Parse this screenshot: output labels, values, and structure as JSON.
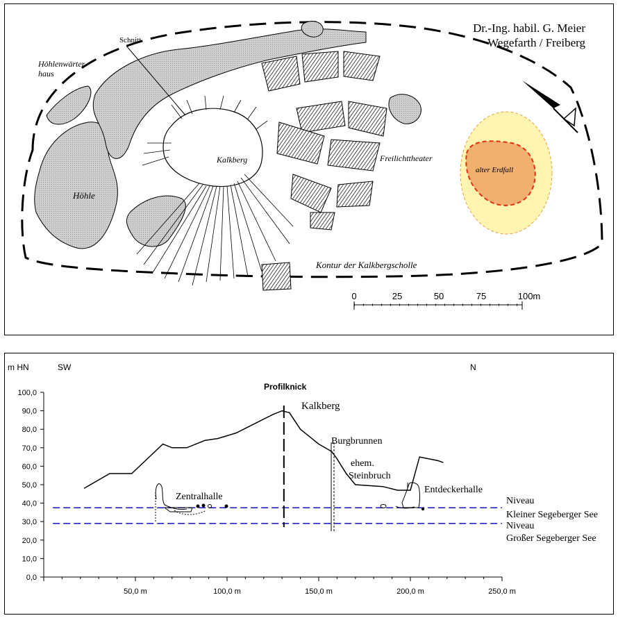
{
  "map": {
    "credit_line1": "Dr.-Ing. habil. G. Meier",
    "credit_line2": "Wegefarth / Freiberg",
    "labels": {
      "schnitt": "Schnitt",
      "hoehlenwaerter_1": "Höhlenwärter-",
      "hoehlenwaerter_2": "haus",
      "hoehle": "Höhle",
      "kalkberg": "Kalkberg",
      "freilichttheater": "Freilichttheater",
      "alter_erdfall": "alter Erdfall",
      "kontur": "Kontur der Kalkbergscholle"
    },
    "scale_bar": {
      "ticks": [
        "0",
        "25",
        "50",
        "75",
        "100m"
      ]
    },
    "colors": {
      "rock": "#c8c8c8",
      "sinkhole_outer": "#fff4b0",
      "sinkhole_inner": "#f0b070",
      "sinkhole_edge": "#e03010"
    }
  },
  "profile": {
    "y_unit_label": "m  HN",
    "dir_left": "SW",
    "dir_right": "N",
    "y_ticks": [
      "100,0",
      "90,0",
      "80,0",
      "70,0",
      "60,0",
      "50,0",
      "40,0",
      "30,0",
      "20,0",
      "10,0",
      "0,0"
    ],
    "x_ticks": [
      "50,0  m",
      "100,0  m",
      "150,0  m",
      "200,0  m",
      "250,0  m"
    ],
    "labels": {
      "profilknick": "Profilknick",
      "kalkberg": "Kalkberg",
      "burgbrunnen": "Burgbrunnen",
      "steinbruch_1": "ehem.",
      "steinbruch_2": "Steinbruch",
      "entdeckerhalle": "Entdeckerhalle",
      "zentralhalle": "Zentralhalle",
      "niveau_klein_1": "Niveau",
      "niveau_klein_2": "Kleiner Segeberger See",
      "niveau_gross_1": "Niveau",
      "niveau_gross_2": "Großer Segeberger See"
    },
    "colors": {
      "water_level": "#1010c0",
      "terrain": "#000000"
    }
  },
  "chart_data": {
    "type": "line",
    "xlabel": "m",
    "ylabel": "m  HN",
    "xlim": [
      0,
      250
    ],
    "ylim": [
      0,
      100
    ],
    "series": [
      {
        "name": "",
        "x": [
          22,
          36,
          48,
          65,
          70,
          78,
          88,
          95,
          105,
          115,
          125,
          130,
          134,
          140,
          145,
          150,
          157,
          160,
          165,
          170,
          185,
          193,
          200,
          205,
          215,
          218
        ],
        "y": [
          48,
          56,
          56,
          72,
          70,
          70,
          74,
          75,
          78,
          83,
          88,
          90,
          89,
          80,
          76,
          72,
          68,
          64,
          56,
          50,
          49,
          47,
          47,
          65,
          63,
          62
        ]
      }
    ],
    "water_levels": [
      {
        "name": "Niveau Kleiner Segeberger See",
        "y": 37.5
      },
      {
        "name": "Niveau Großer Segeberger See",
        "y": 29
      }
    ],
    "profile_break_x": 131
  }
}
